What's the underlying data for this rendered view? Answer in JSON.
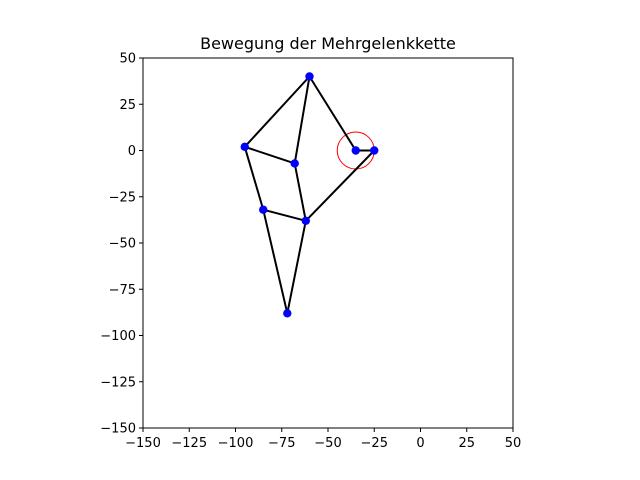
{
  "chart_data": {
    "type": "scatter",
    "title": "Bewegung der Mehrgelenkkette",
    "xlabel": "",
    "ylabel": "",
    "xlim": [
      -150,
      50
    ],
    "ylim": [
      -150,
      50
    ],
    "xticks": [
      -150,
      -125,
      -100,
      -75,
      -50,
      -25,
      0,
      25,
      50
    ],
    "yticks": [
      -150,
      -125,
      -100,
      -75,
      -50,
      -25,
      0,
      25,
      50
    ],
    "xtick_labels": [
      "−150",
      "−125",
      "−100",
      "−75",
      "−50",
      "−25",
      "0",
      "25",
      "50"
    ],
    "ytick_labels": [
      "−150",
      "−125",
      "−100",
      "−75",
      "−50",
      "−25",
      "0",
      "25",
      "50"
    ],
    "grid": false,
    "joints": [
      {
        "x": -60,
        "y": 40
      },
      {
        "x": -95,
        "y": 2
      },
      {
        "x": -68,
        "y": -7
      },
      {
        "x": -85,
        "y": -32
      },
      {
        "x": -62,
        "y": -38
      },
      {
        "x": -72,
        "y": -88
      },
      {
        "x": -35,
        "y": 0
      },
      {
        "x": -25,
        "y": 0
      }
    ],
    "links": [
      [
        0,
        1
      ],
      [
        0,
        2
      ],
      [
        0,
        6
      ],
      [
        1,
        2
      ],
      [
        1,
        3
      ],
      [
        2,
        4
      ],
      [
        3,
        4
      ],
      [
        3,
        5
      ],
      [
        4,
        5
      ],
      [
        4,
        7
      ],
      [
        6,
        7
      ]
    ],
    "crank_circle": {
      "cx": -35,
      "cy": 0,
      "r": 10
    },
    "colors": {
      "joint": "#0000ff",
      "link": "#000000",
      "circle": "#ff0000"
    }
  }
}
